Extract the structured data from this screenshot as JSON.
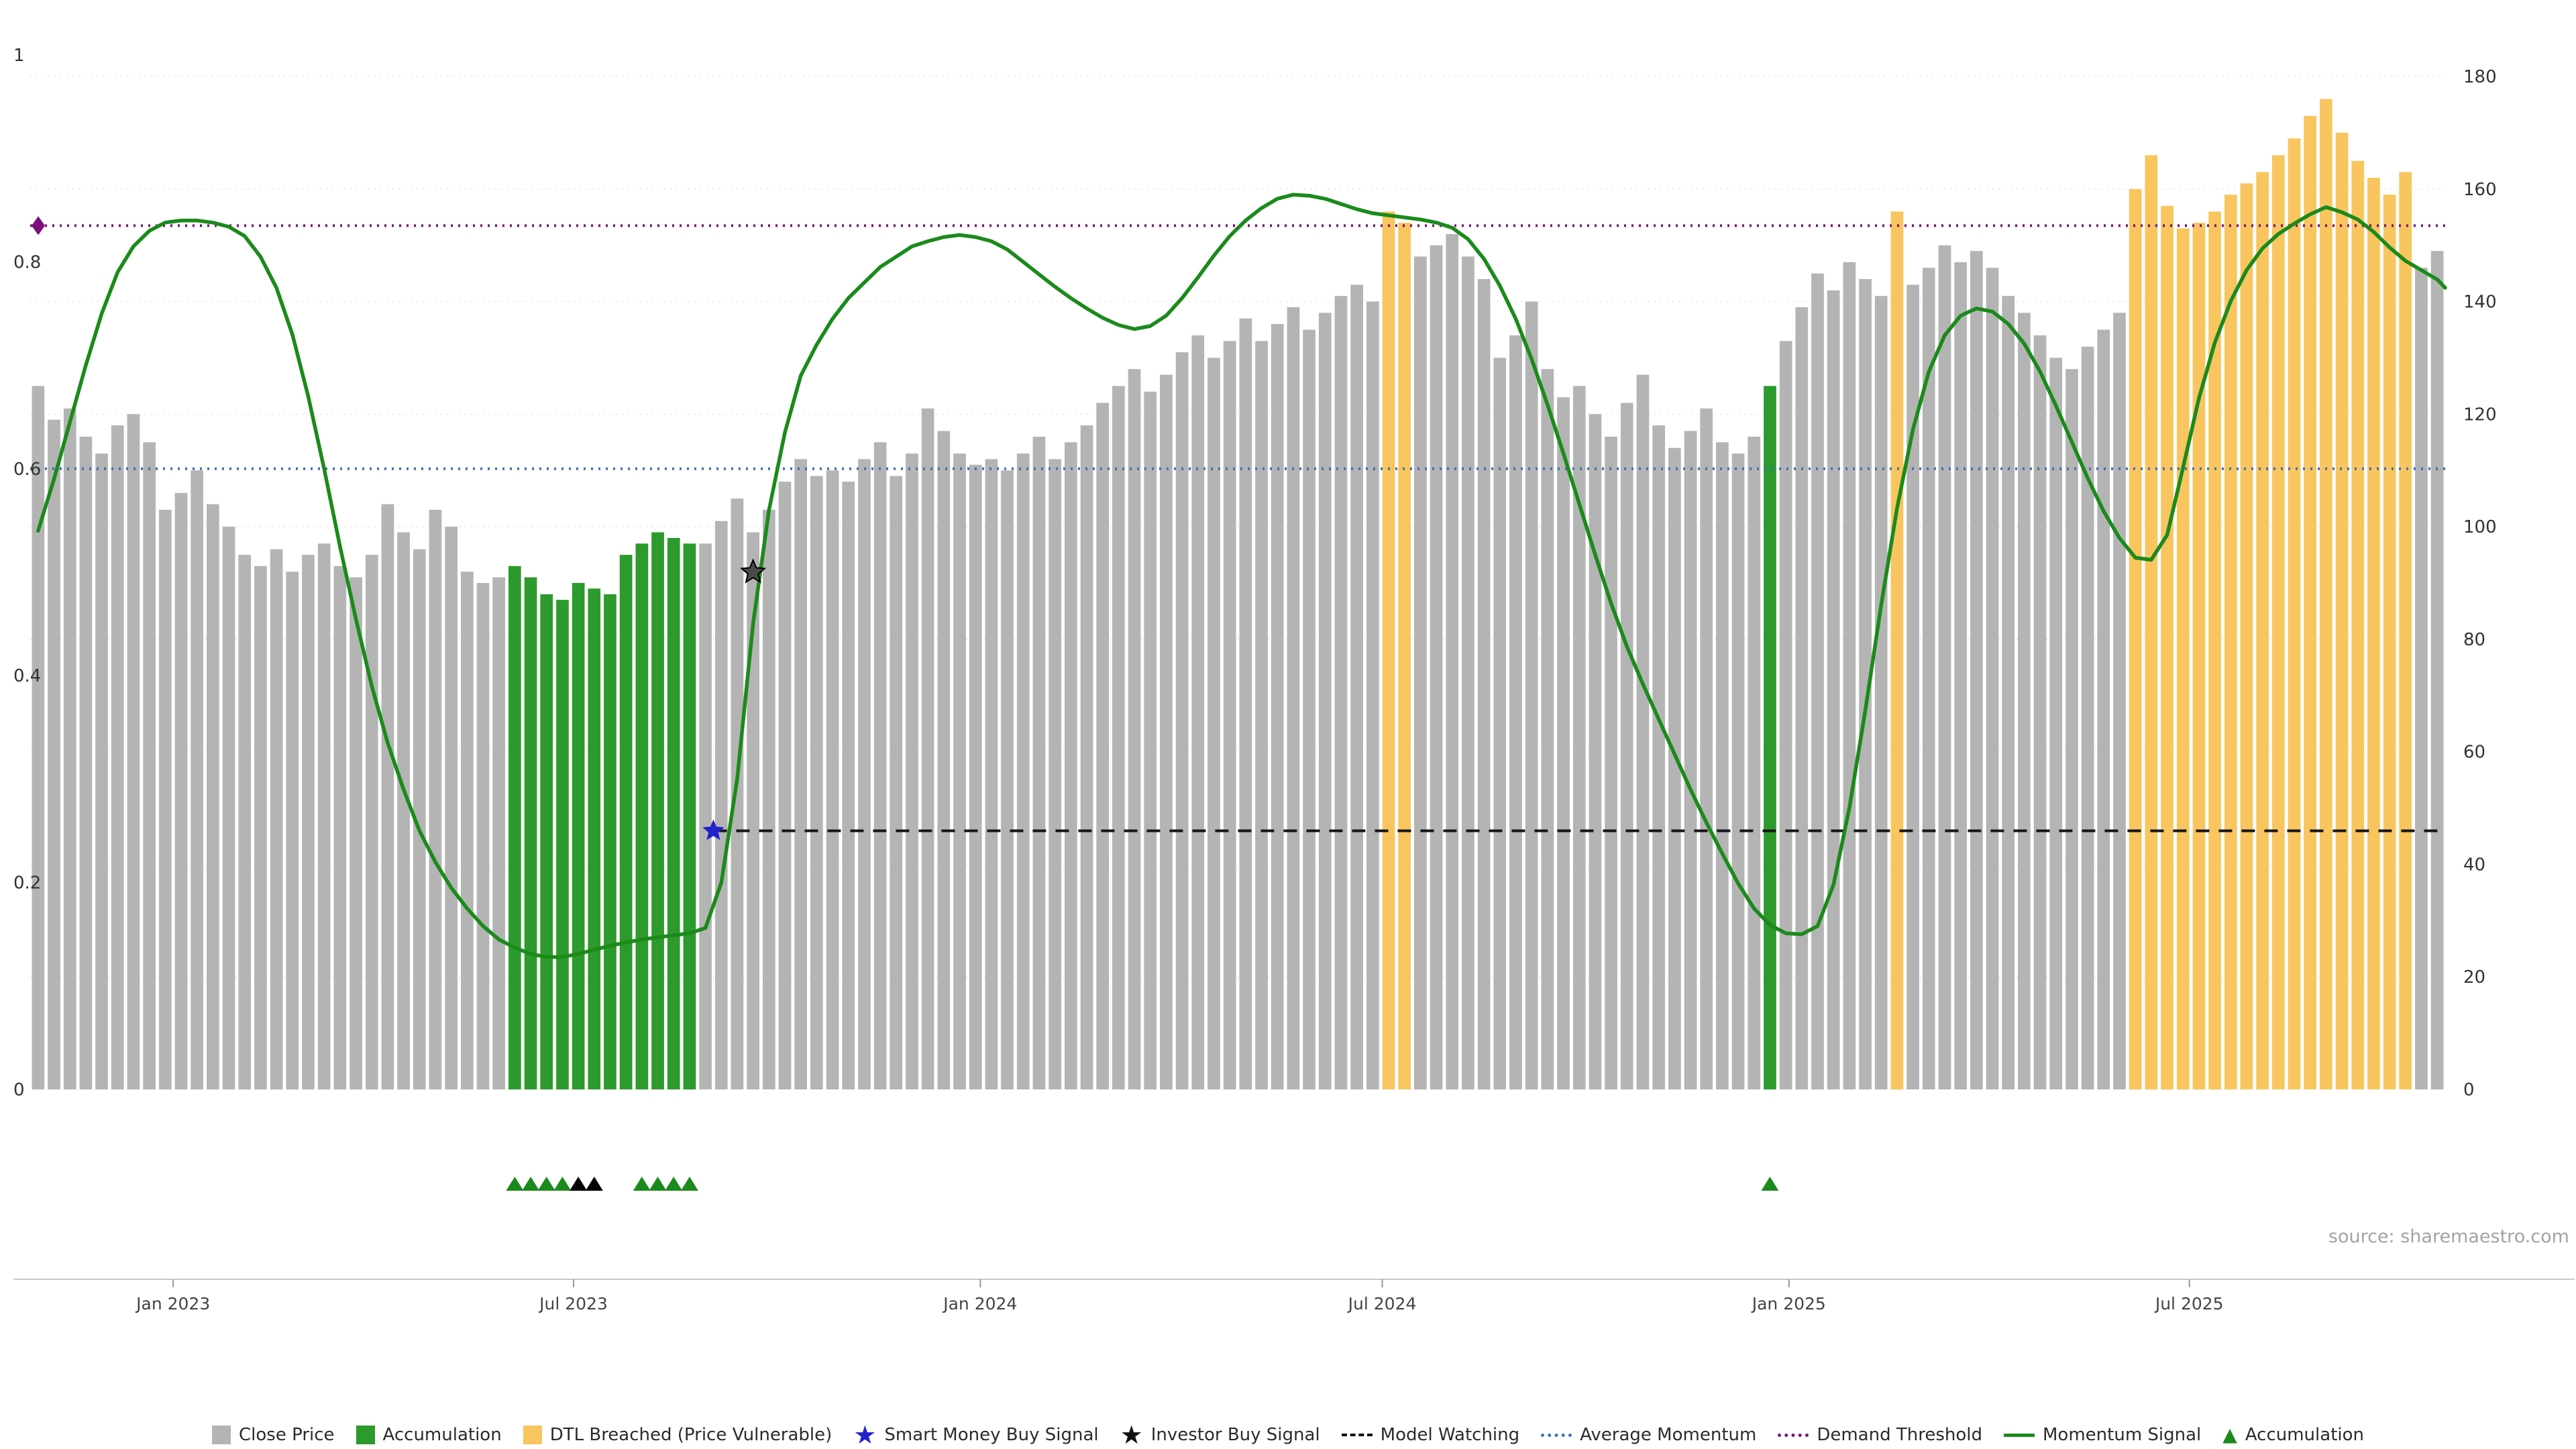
{
  "chart_data": {
    "type": "bar",
    "title": "",
    "source": "source: sharemaestro.com",
    "left_axis": {
      "ticks": [
        0,
        0.2,
        0.4,
        0.6,
        0.8,
        1
      ],
      "range": [
        0,
        1
      ]
    },
    "right_axis": {
      "ticks": [
        0,
        20,
        40,
        60,
        80,
        100,
        120,
        140,
        160,
        180
      ],
      "range": [
        0,
        180
      ]
    },
    "x_ticks": [
      {
        "label": "Jan 2023",
        "idx": 9.0
      },
      {
        "label": "Jul 2023",
        "idx": 34.2
      },
      {
        "label": "Jan 2024",
        "idx": 59.8
      },
      {
        "label": "Jul 2024",
        "idx": 85.1
      },
      {
        "label": "Jan 2025",
        "idx": 110.7
      },
      {
        "label": "Jul 2025",
        "idx": 135.9
      }
    ],
    "bars": {
      "name": "Close Price",
      "axis": "right",
      "values": [
        125,
        119,
        121,
        116,
        113,
        118,
        120,
        115,
        103,
        106,
        110,
        104,
        100,
        95,
        93,
        96,
        92,
        95,
        97,
        93,
        91,
        95,
        104,
        99,
        96,
        103,
        100,
        92,
        90,
        91,
        93,
        91,
        88,
        87,
        90,
        89,
        88,
        95,
        97,
        99,
        98,
        97,
        97,
        101,
        105,
        99,
        103,
        108,
        112,
        109,
        110,
        108,
        112,
        115,
        109,
        113,
        121,
        117,
        113,
        111,
        112,
        110,
        113,
        116,
        112,
        115,
        118,
        122,
        125,
        128,
        124,
        127,
        131,
        134,
        130,
        133,
        137,
        133,
        136,
        139,
        135,
        138,
        141,
        143,
        140,
        156,
        154,
        148,
        150,
        152,
        148,
        144,
        130,
        134,
        140,
        128,
        123,
        125,
        120,
        116,
        122,
        127,
        118,
        114,
        117,
        121,
        115,
        113,
        116,
        125,
        133,
        139,
        145,
        142,
        147,
        144,
        141,
        156,
        143,
        146,
        150,
        147,
        149,
        146,
        141,
        138,
        134,
        130,
        128,
        132,
        135,
        138,
        160,
        166,
        157,
        153,
        154,
        156,
        159,
        161,
        163,
        166,
        169,
        173,
        176,
        170,
        165,
        162,
        159,
        163,
        146,
        149
      ]
    },
    "bar_color_runs": [
      {
        "kind": "accumulation",
        "from": 30,
        "to": 41
      },
      {
        "kind": "dtl_breached",
        "from": 85,
        "to": 86
      },
      {
        "kind": "accumulation",
        "from": 109,
        "to": 109
      },
      {
        "kind": "dtl_breached",
        "from": 117,
        "to": 117
      },
      {
        "kind": "dtl_breached",
        "from": 132,
        "to": 149
      }
    ],
    "momentum_line": {
      "name": "Momentum Signal",
      "axis": "left",
      "points": [
        [
          0,
          0.54
        ],
        [
          1,
          0.59
        ],
        [
          2,
          0.645
        ],
        [
          3,
          0.7
        ],
        [
          4,
          0.75
        ],
        [
          5,
          0.79
        ],
        [
          6,
          0.815
        ],
        [
          7,
          0.83
        ],
        [
          8,
          0.838
        ],
        [
          9,
          0.84
        ],
        [
          10,
          0.84
        ],
        [
          11,
          0.838
        ],
        [
          12,
          0.834
        ],
        [
          13,
          0.825
        ],
        [
          14,
          0.805
        ],
        [
          15,
          0.775
        ],
        [
          16,
          0.73
        ],
        [
          17,
          0.67
        ],
        [
          18,
          0.6
        ],
        [
          19,
          0.525
        ],
        [
          20,
          0.455
        ],
        [
          21,
          0.39
        ],
        [
          22,
          0.335
        ],
        [
          23,
          0.29
        ],
        [
          24,
          0.25
        ],
        [
          25,
          0.22
        ],
        [
          26,
          0.195
        ],
        [
          27,
          0.175
        ],
        [
          28,
          0.158
        ],
        [
          29,
          0.145
        ],
        [
          30,
          0.137
        ],
        [
          31,
          0.131
        ],
        [
          32,
          0.128
        ],
        [
          33,
          0.128
        ],
        [
          34,
          0.131
        ],
        [
          35,
          0.135
        ],
        [
          36,
          0.139
        ],
        [
          37,
          0.142
        ],
        [
          38,
          0.145
        ],
        [
          39,
          0.147
        ],
        [
          40,
          0.149
        ],
        [
          41,
          0.151
        ],
        [
          42,
          0.156
        ],
        [
          43,
          0.2
        ],
        [
          44,
          0.3
        ],
        [
          45,
          0.45
        ],
        [
          46,
          0.56
        ],
        [
          47,
          0.635
        ],
        [
          48,
          0.69
        ],
        [
          49,
          0.72
        ],
        [
          50,
          0.745
        ],
        [
          51,
          0.765
        ],
        [
          52,
          0.78
        ],
        [
          53,
          0.795
        ],
        [
          54,
          0.805
        ],
        [
          55,
          0.815
        ],
        [
          56,
          0.82
        ],
        [
          57,
          0.824
        ],
        [
          58,
          0.826
        ],
        [
          59,
          0.824
        ],
        [
          60,
          0.82
        ],
        [
          61,
          0.812
        ],
        [
          62,
          0.8
        ],
        [
          63,
          0.788
        ],
        [
          64,
          0.776
        ],
        [
          65,
          0.765
        ],
        [
          66,
          0.755
        ],
        [
          67,
          0.746
        ],
        [
          68,
          0.739
        ],
        [
          69,
          0.735
        ],
        [
          70,
          0.738
        ],
        [
          71,
          0.748
        ],
        [
          72,
          0.765
        ],
        [
          73,
          0.785
        ],
        [
          74,
          0.806
        ],
        [
          75,
          0.825
        ],
        [
          76,
          0.84
        ],
        [
          77,
          0.852
        ],
        [
          78,
          0.861
        ],
        [
          79,
          0.865
        ],
        [
          80,
          0.864
        ],
        [
          81,
          0.861
        ],
        [
          82,
          0.856
        ],
        [
          83,
          0.851
        ],
        [
          84,
          0.847
        ],
        [
          85,
          0.845
        ],
        [
          86,
          0.843
        ],
        [
          87,
          0.841
        ],
        [
          88,
          0.838
        ],
        [
          89,
          0.833
        ],
        [
          90,
          0.822
        ],
        [
          91,
          0.803
        ],
        [
          92,
          0.777
        ],
        [
          93,
          0.745
        ],
        [
          94,
          0.706
        ],
        [
          95,
          0.662
        ],
        [
          96,
          0.615
        ],
        [
          97,
          0.566
        ],
        [
          98,
          0.517
        ],
        [
          99,
          0.47
        ],
        [
          100,
          0.428
        ],
        [
          101,
          0.392
        ],
        [
          102,
          0.358
        ],
        [
          103,
          0.324
        ],
        [
          104,
          0.29
        ],
        [
          105,
          0.258
        ],
        [
          106,
          0.228
        ],
        [
          107,
          0.199
        ],
        [
          108,
          0.175
        ],
        [
          109,
          0.159
        ],
        [
          110,
          0.151
        ],
        [
          111,
          0.15
        ],
        [
          112,
          0.158
        ],
        [
          113,
          0.198
        ],
        [
          114,
          0.272
        ],
        [
          115,
          0.366
        ],
        [
          116,
          0.468
        ],
        [
          117,
          0.562
        ],
        [
          118,
          0.638
        ],
        [
          119,
          0.694
        ],
        [
          120,
          0.729
        ],
        [
          121,
          0.748
        ],
        [
          122,
          0.755
        ],
        [
          123,
          0.752
        ],
        [
          124,
          0.74
        ],
        [
          125,
          0.721
        ],
        [
          126,
          0.694
        ],
        [
          127,
          0.661
        ],
        [
          128,
          0.626
        ],
        [
          129,
          0.591
        ],
        [
          130,
          0.559
        ],
        [
          131,
          0.533
        ],
        [
          132,
          0.514
        ],
        [
          133,
          0.512
        ],
        [
          134,
          0.536
        ],
        [
          135,
          0.601
        ],
        [
          136,
          0.668
        ],
        [
          137,
          0.722
        ],
        [
          138,
          0.762
        ],
        [
          139,
          0.792
        ],
        [
          140,
          0.813
        ],
        [
          141,
          0.827
        ],
        [
          142,
          0.837
        ],
        [
          143,
          0.846
        ],
        [
          144,
          0.853
        ],
        [
          145,
          0.848
        ],
        [
          146,
          0.841
        ],
        [
          147,
          0.829
        ],
        [
          148,
          0.814
        ],
        [
          149,
          0.801
        ],
        [
          150,
          0.792
        ],
        [
          151,
          0.783
        ],
        [
          151.5,
          0.775
        ]
      ]
    },
    "thresholds": [
      {
        "name": "Demand Threshold",
        "value": 0.835,
        "style": "dotted",
        "color": "#7b0f7b",
        "start_idx": 0
      },
      {
        "name": "Average Momentum",
        "value": 0.6,
        "style": "dotted",
        "color": "#4070b0",
        "start_idx": 0
      },
      {
        "name": "Model Watching",
        "value": 0.25,
        "style": "dashed",
        "color": "#151515",
        "start_idx": 42.5
      }
    ],
    "markers": {
      "demand_threshold_diamond": {
        "idx": 0.3,
        "value": 0.835,
        "color": "#7b0f7b"
      },
      "smart_money_buy_signal": {
        "idx": 42.5,
        "value": 0.25,
        "color": "#2222cc"
      },
      "investor_buy_signal": {
        "idx": 45,
        "value": 0.5,
        "color": "#4a4a4a"
      },
      "accumulation_triangles_green": [
        30,
        31,
        32,
        33,
        38,
        39,
        40,
        41,
        109
      ],
      "accumulation_triangles_black": [
        34,
        35
      ]
    },
    "colors": {
      "close_price": "#b4b4b4",
      "accumulation": "#2c9a2c",
      "dtl_breached": "#f8c55f",
      "momentum_signal": "#1b8a1b"
    },
    "legend": [
      {
        "label": "Close Price",
        "swatch": "square",
        "color": "#b4b4b4"
      },
      {
        "label": "Accumulation",
        "swatch": "square",
        "color": "#2c9a2c"
      },
      {
        "label": "DTL Breached (Price Vulnerable)",
        "swatch": "square",
        "color": "#f8c55f"
      },
      {
        "label": "Smart Money Buy Signal",
        "swatch": "star",
        "color": "#2222cc"
      },
      {
        "label": "Investor Buy Signal",
        "swatch": "star",
        "color": "#111111"
      },
      {
        "label": "Model Watching",
        "swatch": "dashed-line",
        "color": "#151515"
      },
      {
        "label": "Average Momentum",
        "swatch": "dotted-line",
        "color": "#4070b0"
      },
      {
        "label": "Demand Threshold",
        "swatch": "dotted-line",
        "color": "#7b0f7b"
      },
      {
        "label": "Momentum Signal",
        "swatch": "solid-line",
        "color": "#1b8a1b"
      },
      {
        "label": "Accumulation",
        "swatch": "triangle",
        "color": "#1b8a1b"
      }
    ]
  }
}
